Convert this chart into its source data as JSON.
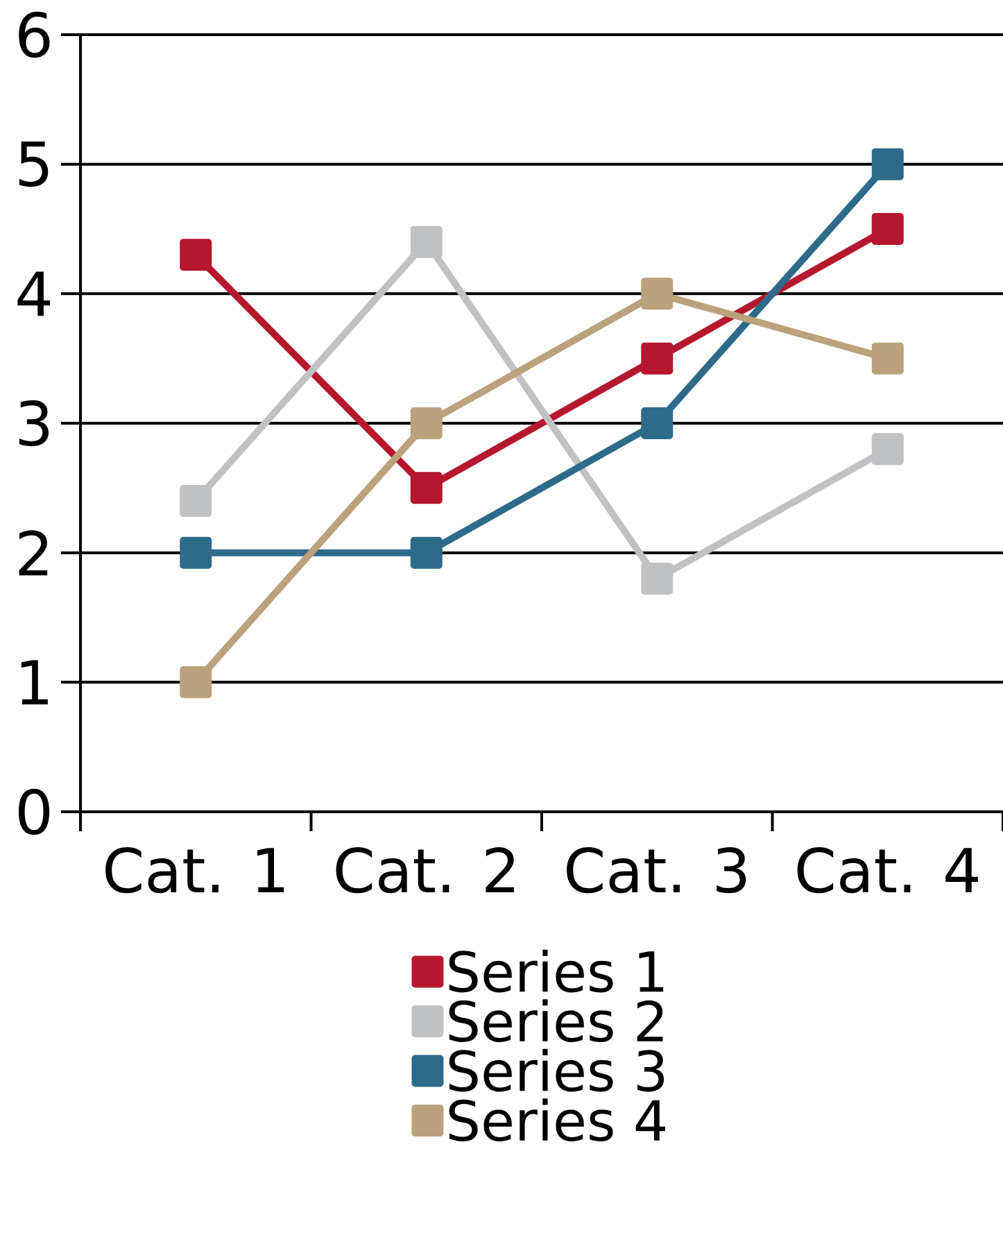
{
  "chart_data": {
    "type": "line",
    "categories": [
      "Cat. 1",
      "Cat. 2",
      "Cat. 3",
      "Cat. 4"
    ],
    "series": [
      {
        "name": "Series 1",
        "color": "#b5182e",
        "values": [
          4.3,
          2.5,
          3.5,
          4.5
        ]
      },
      {
        "name": "Series 2",
        "color": "#bfc1c3",
        "values": [
          2.4,
          4.4,
          1.8,
          2.8
        ]
      },
      {
        "name": "Series 3",
        "color": "#2e6b8a",
        "values": [
          2,
          2,
          3,
          5
        ]
      },
      {
        "name": "Series 4",
        "color": "#bba27c",
        "values": [
          1,
          3,
          4,
          3.5
        ]
      }
    ],
    "ylim": [
      0,
      6
    ],
    "yticks": [
      0,
      1,
      2,
      3,
      4,
      5,
      6
    ],
    "grid": "y",
    "legend": "bottom",
    "marker": "square",
    "line_style": "solid"
  }
}
